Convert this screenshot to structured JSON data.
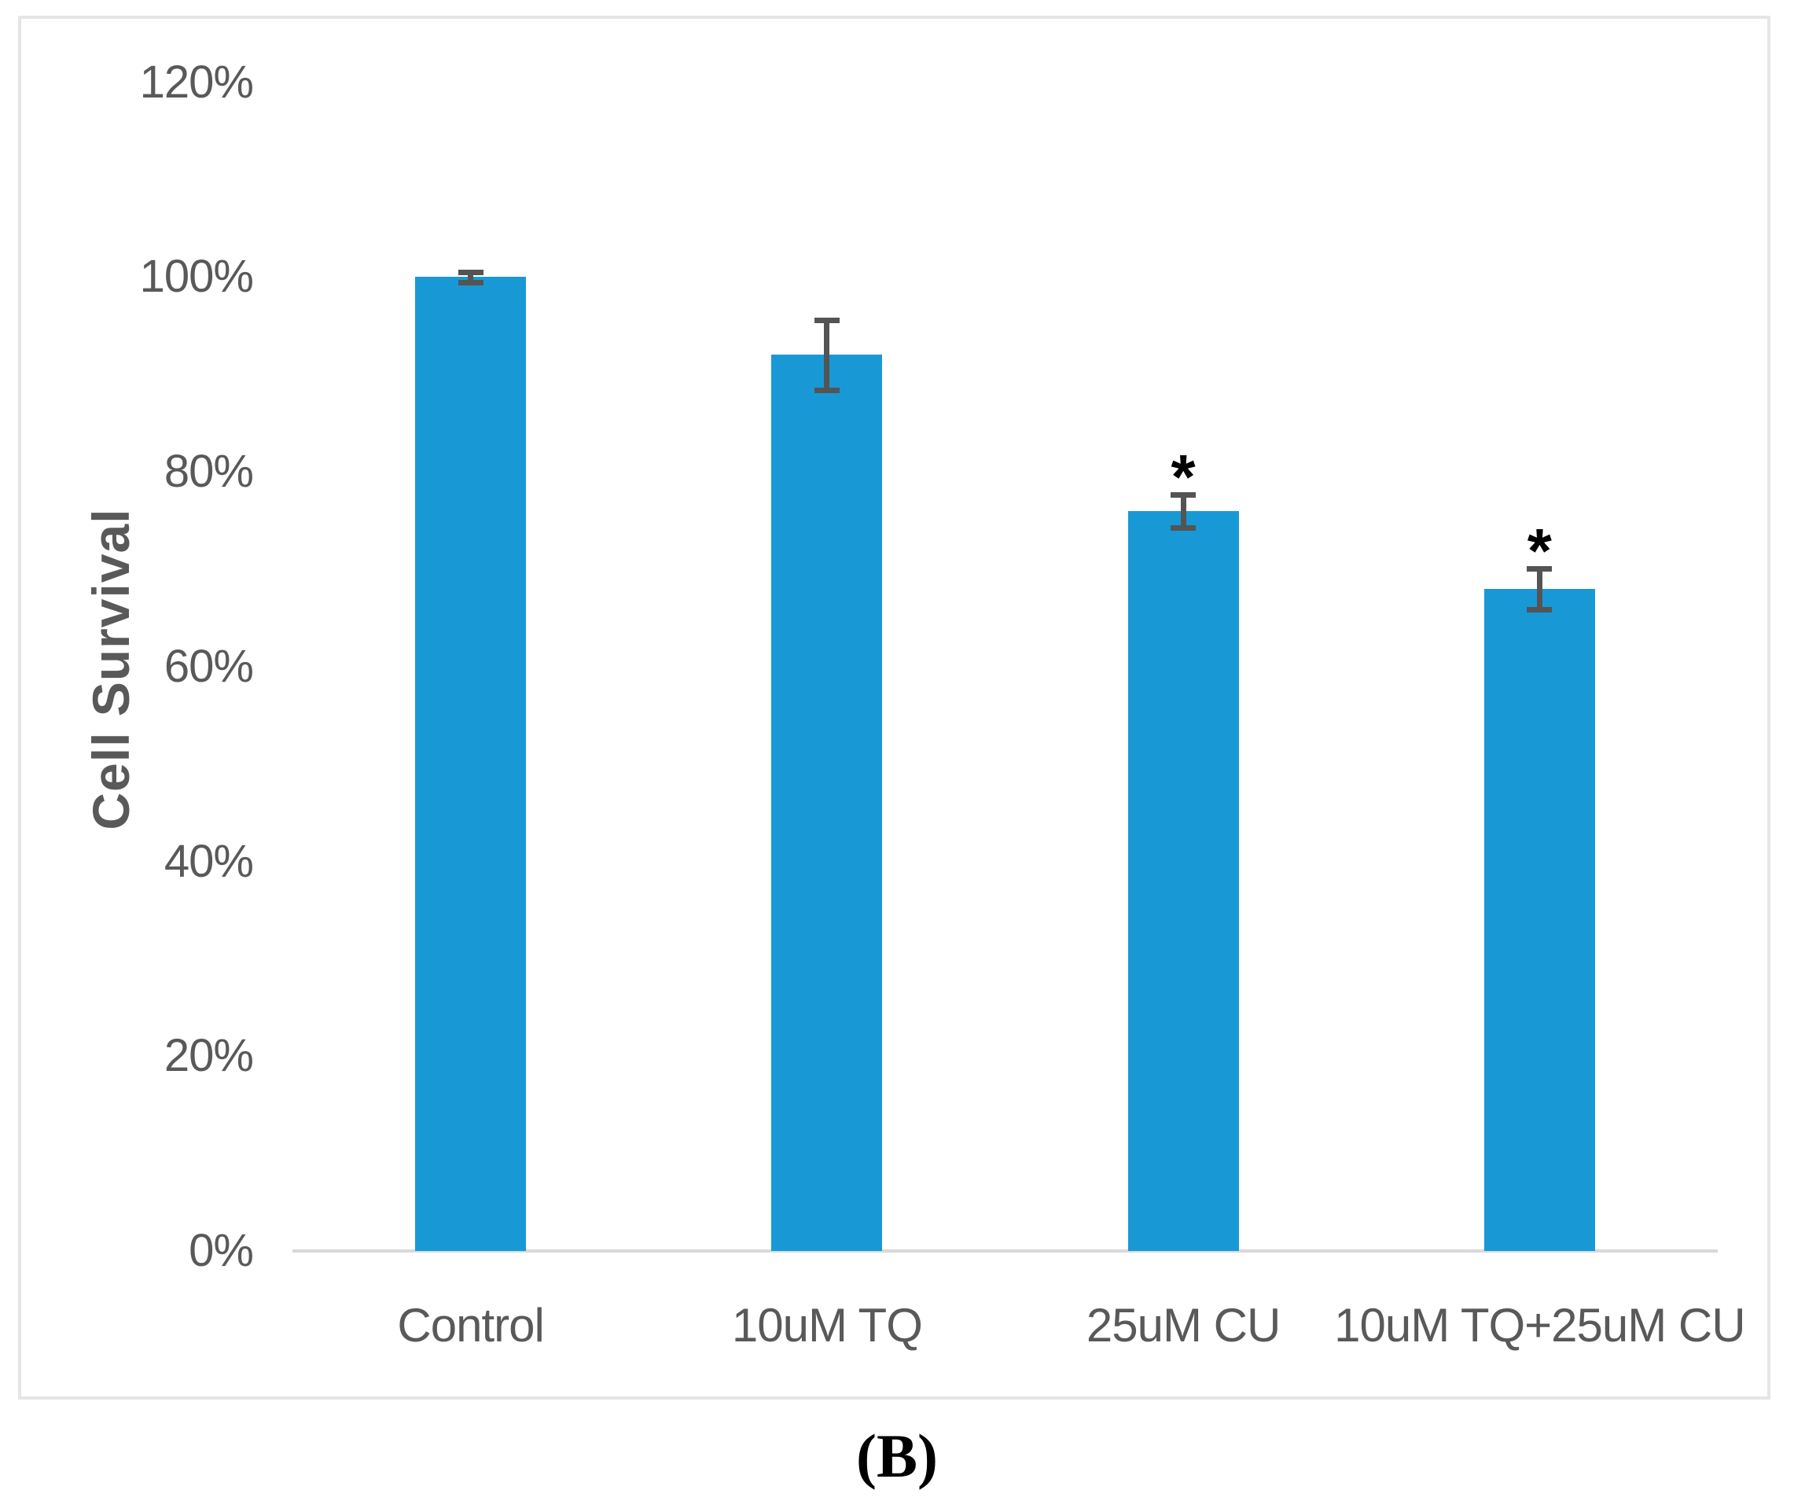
{
  "figure": {
    "caption": "(B)"
  },
  "chart_data": {
    "type": "bar",
    "title": "",
    "xlabel": "",
    "ylabel": "Cell Survival",
    "categories": [
      "Control",
      "10uM TQ",
      "25uM CU",
      "10uM TQ+25uM CU"
    ],
    "values": [
      100,
      92,
      76,
      68
    ],
    "value_unit": "%",
    "error_bars": [
      0.5,
      3.6,
      1.7,
      2.1
    ],
    "significance": [
      false,
      false,
      true,
      true
    ],
    "significance_marker": "*",
    "y_ticks": [
      {
        "label": "0%",
        "value": 0
      },
      {
        "label": "20%",
        "value": 20
      },
      {
        "label": "40%",
        "value": 40
      },
      {
        "label": "60%",
        "value": 60
      },
      {
        "label": "80%",
        "value": 80
      },
      {
        "label": "100%",
        "value": 100
      },
      {
        "label": "120%",
        "value": 120
      }
    ],
    "ylim": [
      0,
      120
    ],
    "grid": "off",
    "legend": "none",
    "bar_color": "#1899D6",
    "error_bar_color": "#545454",
    "axis_text_color": "#595959",
    "axis_line_color": "#D9D9D9"
  }
}
